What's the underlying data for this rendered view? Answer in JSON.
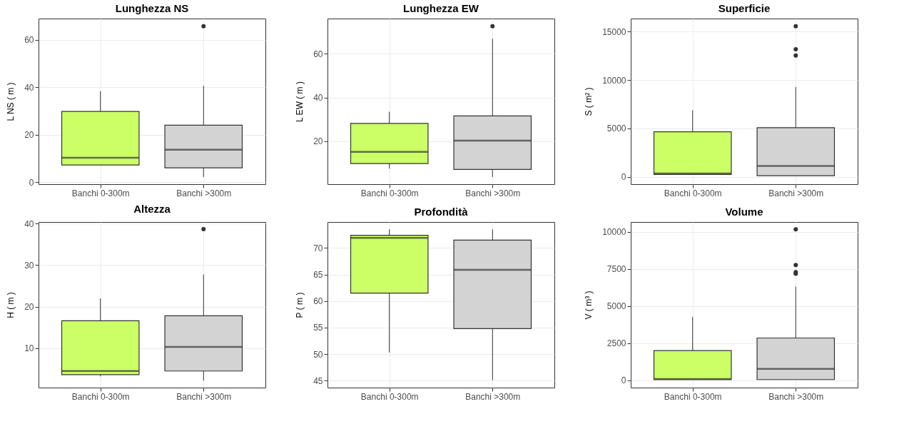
{
  "chart_data": [
    {
      "type": "box",
      "title": "Lunghezza NS",
      "ylabel": "L NS ( m )",
      "categories": [
        "Banchi 0-300m",
        "Banchi >300m"
      ],
      "colors": [
        "#ccff66",
        "#d3d3d3"
      ],
      "ylim": [
        -0.8,
        68.9
      ],
      "yticks": [
        0,
        20,
        40,
        60
      ],
      "grid": true,
      "boxes": [
        {
          "low": 7.3,
          "q1": 7.3,
          "median": 10.3,
          "q3": 29.8,
          "high": 38.3
        },
        {
          "low": 2.2,
          "q1": 6.1,
          "median": 13.7,
          "q3": 24,
          "high": 40.6,
          "outliers": [
            65.7
          ]
        }
      ]
    },
    {
      "type": "box",
      "title": "Lunghezza EW",
      "ylabel": "L EW ( m )",
      "categories": [
        "Banchi 0-300m",
        "Banchi >300m"
      ],
      "colors": [
        "#ccff66",
        "#d3d3d3"
      ],
      "ylim": [
        0.4,
        76.1
      ],
      "yticks": [
        20,
        40,
        60
      ],
      "grid": true,
      "boxes": [
        {
          "low": 7.5,
          "q1": 9.8,
          "median": 15.2,
          "q3": 28.2,
          "high": 33.5
        },
        {
          "low": 3.7,
          "q1": 7.1,
          "median": 20.3,
          "q3": 31.6,
          "high": 66.9,
          "outliers": [
            72.6
          ]
        }
      ]
    },
    {
      "type": "box",
      "title": "Superficie",
      "ylabel": "S ( m² )",
      "categories": [
        "Banchi 0-300m",
        "Banchi >300m"
      ],
      "colors": [
        "#ccff66",
        "#d3d3d3"
      ],
      "ylim": [
        -750,
        16340
      ],
      "yticks": [
        0,
        5000,
        10000,
        15000
      ],
      "grid": true,
      "boxes": [
        {
          "low": 250,
          "q1": 250,
          "median": 350,
          "q3": 4660,
          "high": 6870
        },
        {
          "low": 120,
          "q1": 120,
          "median": 1130,
          "q3": 5080,
          "high": 9270,
          "outliers": [
            12520,
            13180,
            15550
          ]
        }
      ]
    },
    {
      "type": "box",
      "title": "Altezza",
      "ylabel": "H ( m )",
      "categories": [
        "Banchi 0-300m",
        "Banchi >300m"
      ],
      "colors": [
        "#ccff66",
        "#d3d3d3"
      ],
      "ylim": [
        0.5,
        40.4
      ],
      "yticks": [
        10,
        20,
        30,
        40
      ],
      "grid": true,
      "boxes": [
        {
          "low": 3.2,
          "q1": 3.6,
          "median": 4.5,
          "q3": 16.6,
          "high": 22
        },
        {
          "low": 2.2,
          "q1": 4.5,
          "median": 10.3,
          "q3": 17.8,
          "high": 27.8,
          "outliers": [
            38.7
          ]
        }
      ]
    },
    {
      "type": "box",
      "title": "Profondità",
      "ylabel": "P ( m )",
      "categories": [
        "Banchi 0-300m",
        "Banchi >300m"
      ],
      "colors": [
        "#ccff66",
        "#d3d3d3"
      ],
      "ylim": [
        43.7,
        74.9
      ],
      "yticks": [
        45,
        50,
        55,
        60,
        65,
        70
      ],
      "grid": true,
      "boxes": [
        {
          "low": 50.3,
          "q1": 61.5,
          "median": 71.9,
          "q3": 72.4,
          "high": 73.5
        },
        {
          "low": 45.1,
          "q1": 54.8,
          "median": 65.9,
          "q3": 71.5,
          "high": 73.5
        }
      ]
    },
    {
      "type": "box",
      "title": "Volume",
      "ylabel": "V ( m³ )",
      "categories": [
        "Banchi 0-300m",
        "Banchi >300m"
      ],
      "colors": [
        "#ccff66",
        "#d3d3d3"
      ],
      "ylim": [
        -490,
        10660
      ],
      "yticks": [
        0,
        2500,
        5000,
        7500,
        10000
      ],
      "grid": true,
      "boxes": [
        {
          "low": 50,
          "q1": 50,
          "median": 90,
          "q3": 2000,
          "high": 4260
        },
        {
          "low": 50,
          "q1": 50,
          "median": 770,
          "q3": 2850,
          "high": 6310,
          "outliers": [
            7170,
            7280,
            7770,
            10170
          ]
        }
      ]
    }
  ]
}
